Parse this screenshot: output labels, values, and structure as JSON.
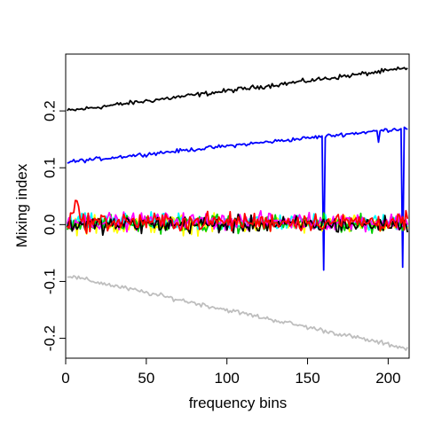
{
  "chart_data": {
    "type": "line",
    "xlabel": "frequency bins",
    "ylabel": "Mixing index",
    "xlim": [
      0,
      213
    ],
    "ylim": [
      -0.235,
      0.3
    ],
    "xticks": [
      0,
      50,
      100,
      150,
      200
    ],
    "xtick_labels": [
      "0",
      "50",
      "100",
      "150",
      "200"
    ],
    "yticks": [
      -0.2,
      -0.1,
      0.0,
      0.1,
      0.2
    ],
    "ytick_labels": [
      "-0.2",
      "-0.1",
      "0.0",
      "0.1",
      "0.2"
    ],
    "grid": false,
    "legend": "none",
    "x": {
      "start": 1,
      "end": 212
    },
    "series": [
      {
        "color": "#000000",
        "style": "trend",
        "start": 0.2,
        "end": 0.275,
        "noise": 0.003
      },
      {
        "color": "#0000ff",
        "style": "trend",
        "start": 0.11,
        "end": 0.17,
        "noise": 0.0025,
        "dips": [
          {
            "x": 160,
            "y": -0.08
          },
          {
            "x": 194,
            "y": 0.145
          },
          {
            "x": 209,
            "y": -0.075
          }
        ]
      },
      {
        "color": "#bebebe",
        "style": "trend",
        "start": -0.09,
        "end": -0.218,
        "noise": 0.003
      },
      {
        "color": "#ffff00",
        "style": "noise",
        "center": 0.0,
        "amp": 0.012
      },
      {
        "color": "#00ffff",
        "style": "noise",
        "center": 0.004,
        "amp": 0.011
      },
      {
        "color": "#00cd00",
        "style": "noise",
        "center": 0.002,
        "amp": 0.011
      },
      {
        "color": "#ff00ff",
        "style": "noise",
        "center": 0.006,
        "amp": 0.011
      },
      {
        "color": "#000000",
        "style": "noise",
        "center": 0.0,
        "amp": 0.011
      },
      {
        "color": "#ff0000",
        "style": "noise",
        "center": 0.005,
        "amp": 0.012,
        "bump": {
          "x": 6,
          "y": 0.04
        }
      }
    ]
  }
}
